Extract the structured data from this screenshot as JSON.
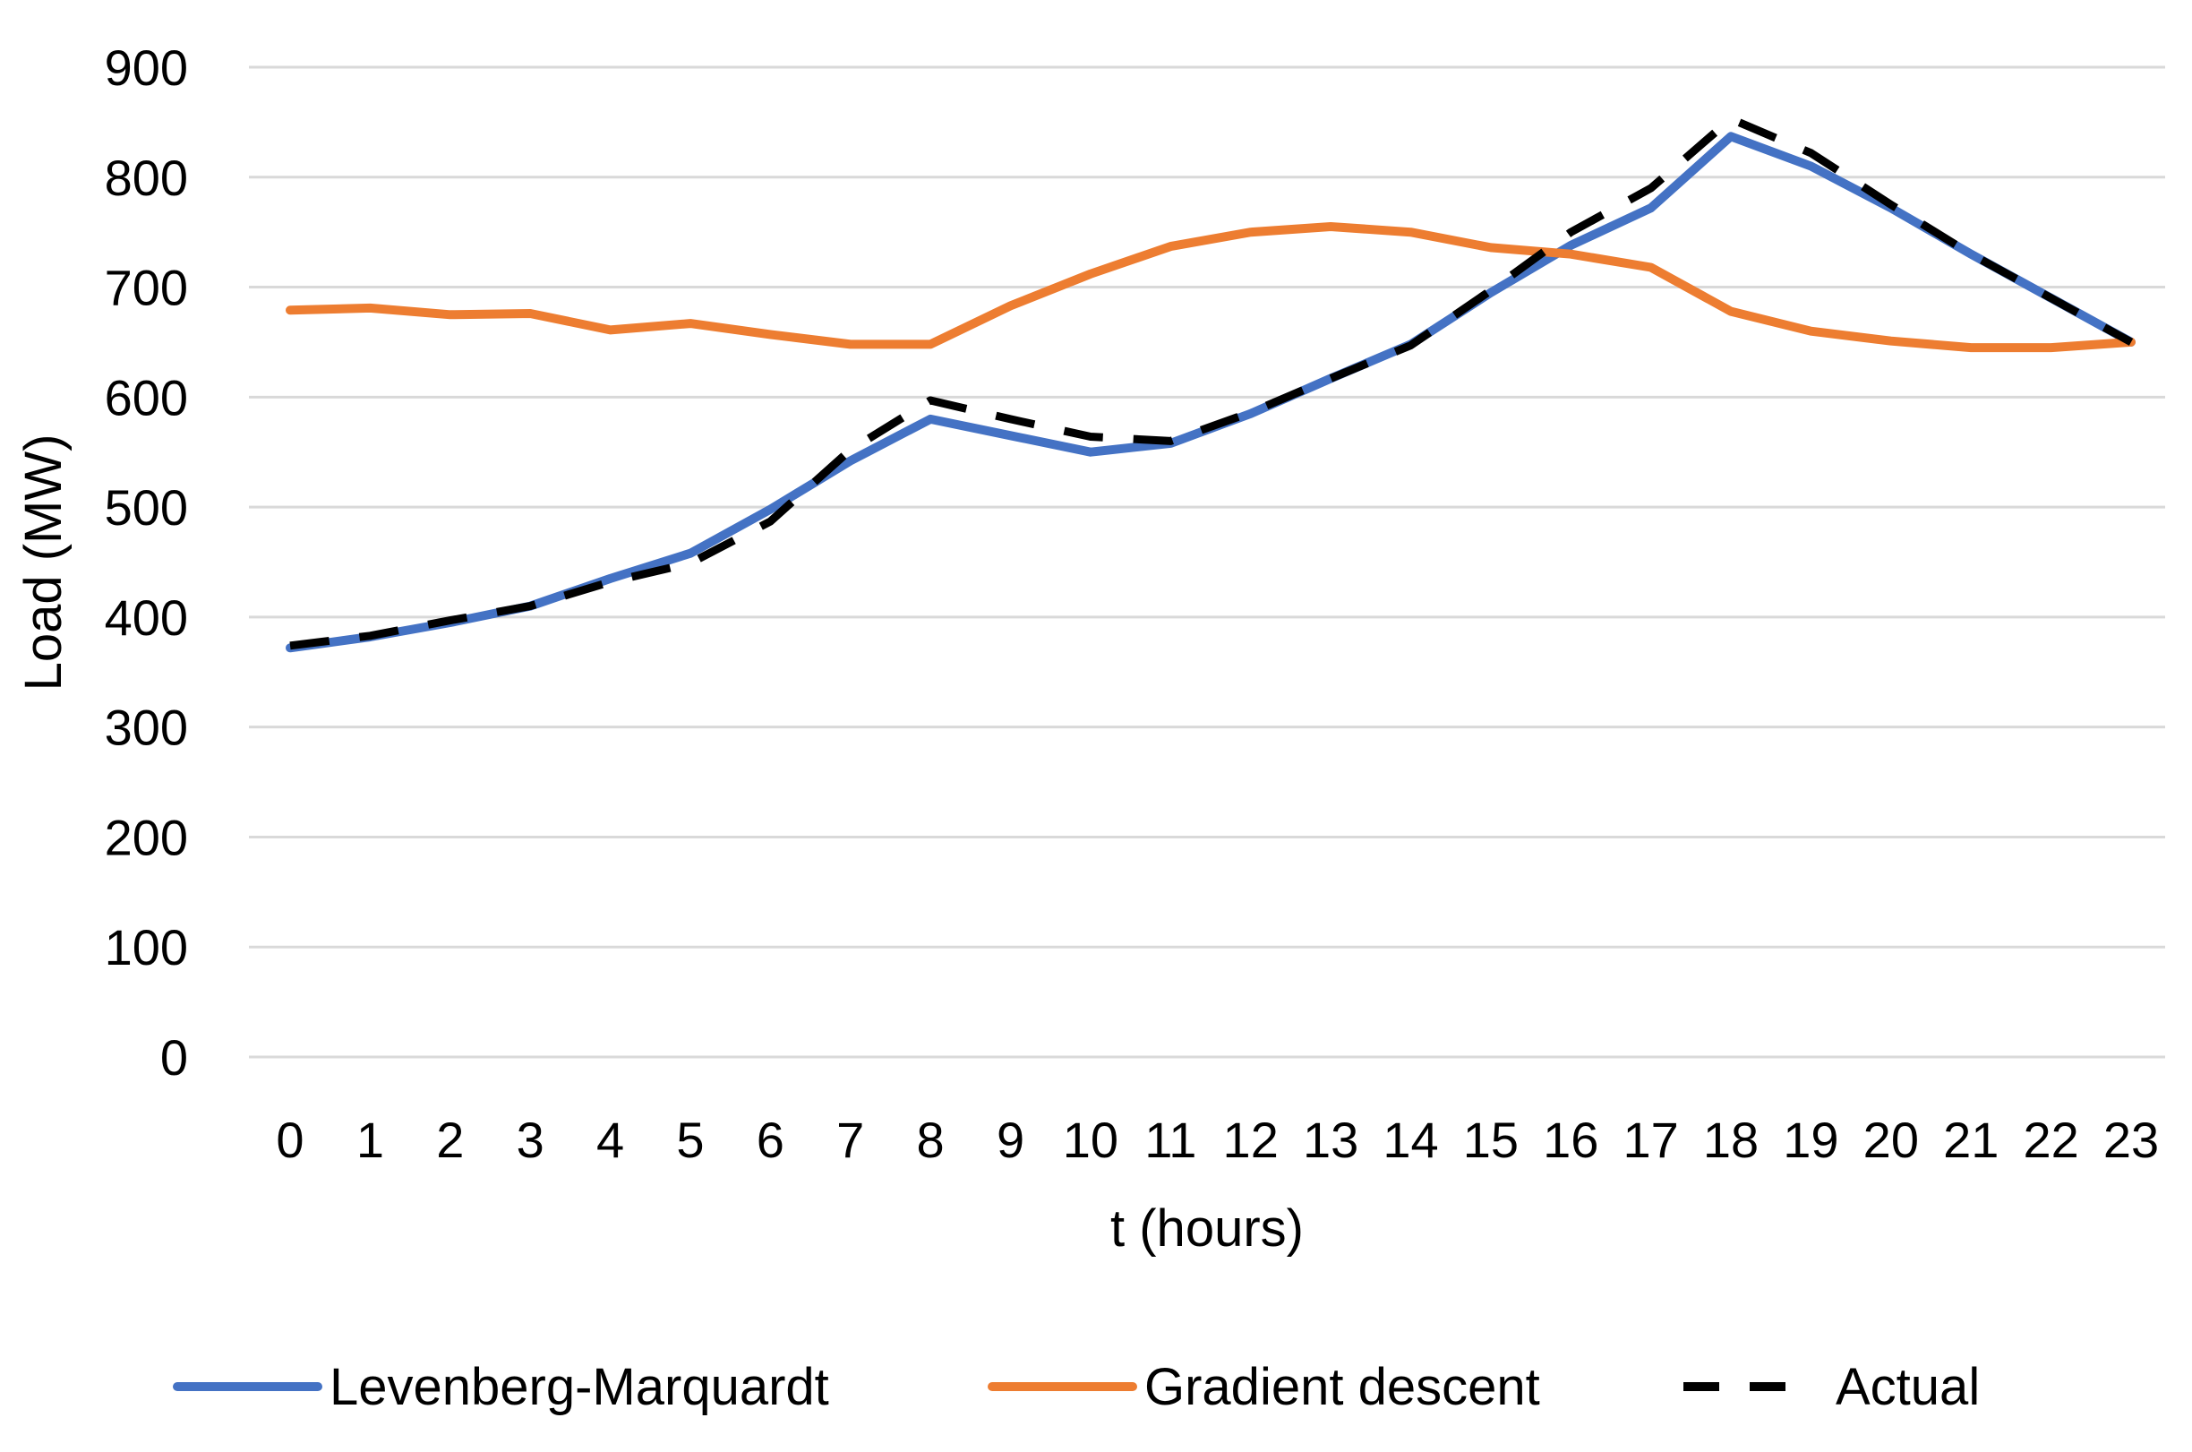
{
  "chart_data": {
    "type": "line",
    "title": "",
    "xlabel": "t (hours)",
    "ylabel": "Load (MW)",
    "x": [
      "0",
      "1",
      "2",
      "3",
      "4",
      "5",
      "6",
      "7",
      "8",
      "9",
      "10",
      "11",
      "12",
      "13",
      "14",
      "15",
      "16",
      "17",
      "18",
      "19",
      "20",
      "21",
      "22",
      "23"
    ],
    "ylim": [
      0,
      900
    ],
    "yticks": [
      "0",
      "100",
      "200",
      "300",
      "400",
      "500",
      "600",
      "700",
      "800",
      "900"
    ],
    "grid": true,
    "legend_position": "bottom",
    "series": [
      {
        "name": "Levenberg-Marquardt",
        "color": "#4472c4",
        "dash": "solid",
        "values": [
          372,
          382,
          395,
          410,
          435,
          458,
          498,
          542,
          580,
          565,
          550,
          558,
          585,
          617,
          648,
          695,
          738,
          772,
          837,
          810,
          772,
          730,
          690,
          650
        ]
      },
      {
        "name": "Gradient descent",
        "color": "#ed7d31",
        "dash": "solid",
        "values": [
          679,
          681,
          675,
          676,
          661,
          667,
          657,
          648,
          648,
          683,
          712,
          737,
          750,
          755,
          750,
          736,
          730,
          718,
          678,
          660,
          651,
          645,
          645,
          650
        ]
      },
      {
        "name": "Actual",
        "color": "#000000",
        "dash": "dashed",
        "values": [
          374,
          383,
          397,
          410,
          432,
          449,
          487,
          552,
          597,
          580,
          564,
          560,
          586,
          617,
          647,
          697,
          750,
          790,
          853,
          822,
          775,
          730,
          690,
          650
        ]
      }
    ]
  }
}
